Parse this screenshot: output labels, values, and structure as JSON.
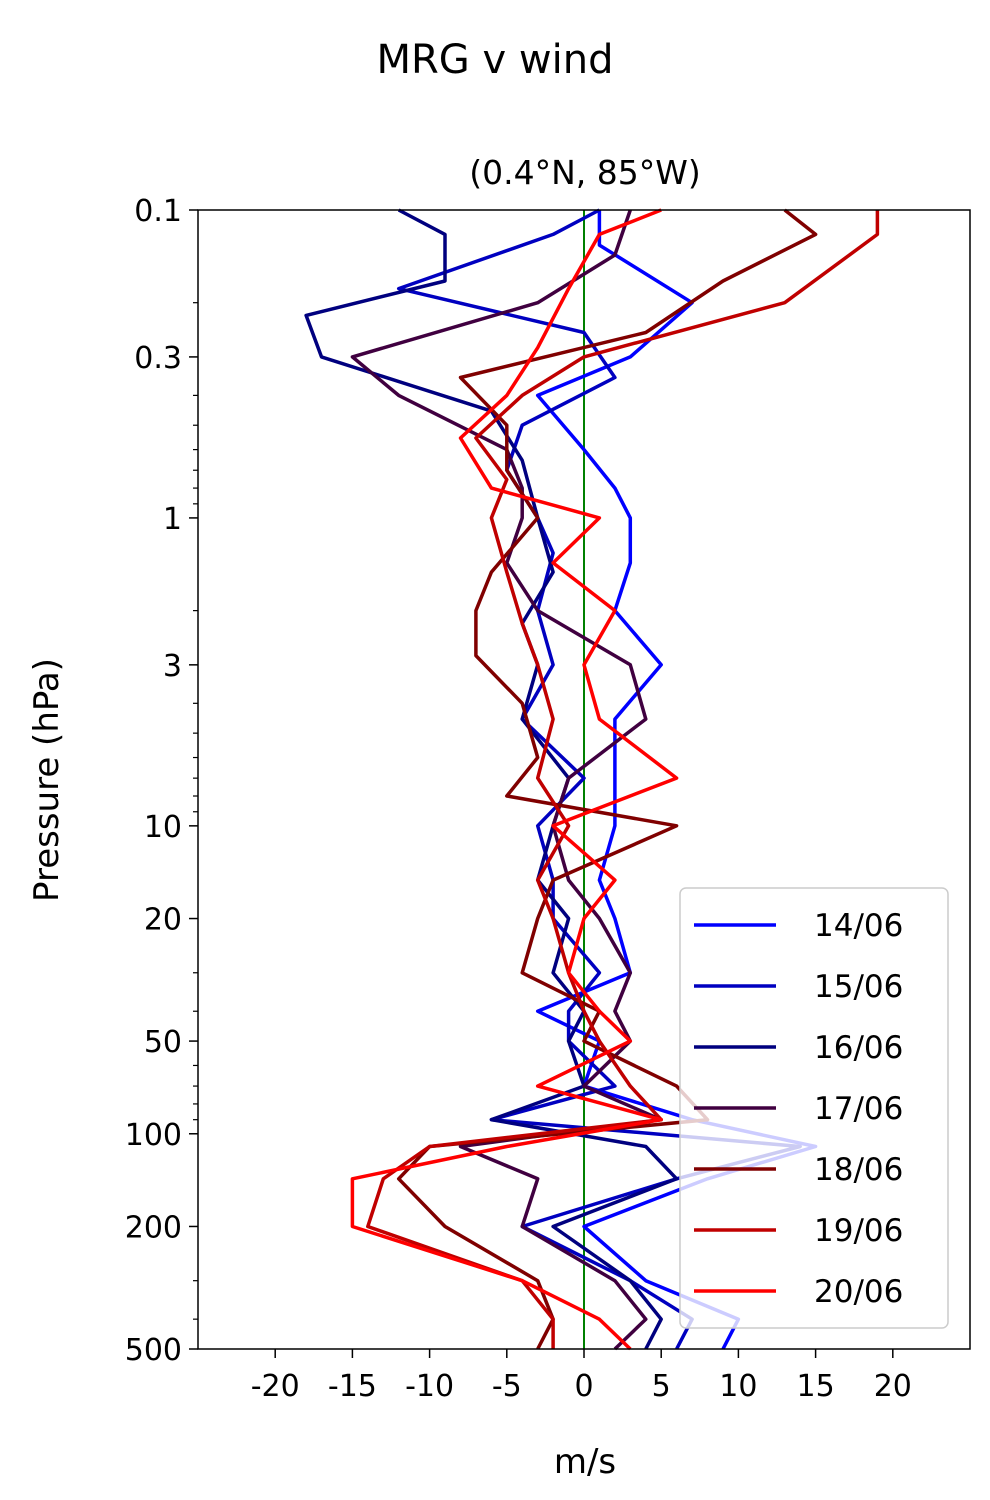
{
  "chart_data": {
    "type": "line",
    "title": "MRG v wind",
    "subtitle": "(0.4°N, 85°W)",
    "xlabel": "m/s",
    "ylabel": "Pressure (hPa)",
    "xlim": [
      -25,
      25
    ],
    "ylim": [
      500,
      0.1
    ],
    "yscale": "log",
    "xticks": [
      -20,
      -15,
      -10,
      -5,
      0,
      5,
      10,
      15,
      20
    ],
    "xtick_labels": [
      "-20",
      "-15",
      "-10",
      "-5",
      "0",
      "5",
      "10",
      "15",
      "20"
    ],
    "yticks": [
      0.1,
      0.3,
      1,
      3,
      10,
      20,
      50,
      100,
      200,
      500
    ],
    "ytick_labels": [
      "0.1",
      "0.3",
      "1",
      "3",
      "10",
      "20",
      "50",
      "100",
      "200",
      "500"
    ],
    "zero_line_color": "#008000",
    "legend_position": "lower-right",
    "series": [
      {
        "name": "14/06",
        "color": "#0000ff",
        "p": [
          0.1,
          0.13,
          0.2,
          0.3,
          0.4,
          0.6,
          0.8,
          1.0,
          1.4,
          2.0,
          3.0,
          4.5,
          7.0,
          10,
          15,
          20,
          30,
          40,
          50,
          70,
          90,
          110,
          140,
          200,
          300,
          400,
          500
        ],
        "v": [
          1,
          1,
          7,
          3,
          -3,
          0,
          2,
          3,
          3,
          2,
          5,
          2,
          2,
          2,
          1,
          2,
          3,
          -3,
          1,
          0,
          7,
          15,
          8,
          0,
          4,
          10,
          9
        ]
      },
      {
        "name": "15/06",
        "color": "#0000c0",
        "p": [
          0.1,
          0.12,
          0.18,
          0.25,
          0.35,
          0.5,
          0.7,
          1.0,
          1.3,
          2.0,
          3.0,
          4.5,
          7.0,
          10,
          15,
          20,
          30,
          40,
          50,
          70,
          90,
          110,
          140,
          200,
          300,
          400,
          500
        ],
        "v": [
          1,
          -2,
          -12,
          0,
          2,
          -4,
          -5,
          -3,
          -2,
          -3,
          -2,
          -4,
          0,
          -3,
          -2,
          -2,
          1,
          -1,
          -1,
          2,
          -6,
          14,
          6,
          -4,
          3,
          7,
          6
        ]
      },
      {
        "name": "16/06",
        "color": "#00007f",
        "p": [
          0.1,
          0.12,
          0.17,
          0.22,
          0.3,
          0.45,
          0.65,
          1.0,
          1.5,
          2.2,
          3.0,
          4.5,
          7.0,
          10,
          15,
          20,
          30,
          40,
          50,
          70,
          90,
          110,
          140,
          200,
          300,
          400,
          500
        ],
        "v": [
          -12,
          -9,
          -9,
          -18,
          -17,
          -6,
          -4,
          -3,
          -2,
          -4,
          -3,
          -4,
          -1,
          -2,
          -3,
          -1,
          -2,
          0,
          -1,
          0,
          -6,
          4,
          6,
          -2,
          3,
          5,
          4
        ]
      },
      {
        "name": "17/06",
        "color": "#400040",
        "p": [
          0.1,
          0.14,
          0.2,
          0.3,
          0.4,
          0.6,
          0.8,
          1.0,
          1.4,
          2.0,
          3.0,
          4.5,
          7.0,
          10,
          15,
          20,
          30,
          40,
          50,
          70,
          90,
          110,
          140,
          200,
          300,
          400,
          500
        ],
        "v": [
          3,
          2,
          -3,
          -15,
          -12,
          -5,
          -4,
          -4,
          -5,
          -3,
          3,
          4,
          -1,
          -2,
          -1,
          1,
          3,
          2,
          3,
          0,
          5,
          -8,
          -3,
          -4,
          2,
          4,
          2
        ]
      },
      {
        "name": "18/06",
        "color": "#800000",
        "p": [
          0.1,
          0.12,
          0.17,
          0.25,
          0.35,
          0.5,
          0.7,
          1.0,
          1.5,
          2.0,
          2.8,
          4.0,
          6.0,
          8.0,
          10,
          15,
          20,
          30,
          40,
          50,
          70,
          90,
          110,
          140,
          200,
          300,
          400,
          500
        ],
        "v": [
          13,
          15,
          9,
          4,
          -8,
          -5,
          -5,
          -3,
          -6,
          -7,
          -7,
          -4,
          -3,
          -5,
          6,
          -2,
          -3,
          -4,
          1,
          0,
          6,
          8,
          -10,
          -12,
          -9,
          -3,
          -2,
          -3
        ]
      },
      {
        "name": "19/06",
        "color": "#c00000",
        "p": [
          0.1,
          0.12,
          0.2,
          0.3,
          0.4,
          0.55,
          0.75,
          1.0,
          1.5,
          2.2,
          3.0,
          4.5,
          7.0,
          10,
          15,
          20,
          30,
          40,
          50,
          70,
          90,
          110,
          140,
          200,
          300,
          400,
          500
        ],
        "v": [
          19,
          19,
          13,
          0,
          -4,
          -7,
          -5,
          -6,
          -5,
          -4,
          -3,
          -2,
          -3,
          -1,
          -3,
          -2,
          -1,
          0,
          1,
          3,
          5,
          -10,
          -13,
          -14,
          -4,
          -2,
          -2
        ]
      },
      {
        "name": "20/06",
        "color": "#ff0000",
        "p": [
          0.1,
          0.12,
          0.18,
          0.28,
          0.4,
          0.55,
          0.8,
          1.0,
          1.4,
          2.0,
          3.0,
          4.5,
          7.0,
          10,
          15,
          20,
          30,
          40,
          50,
          70,
          90,
          110,
          140,
          200,
          300,
          400,
          500
        ],
        "v": [
          5,
          1,
          -1,
          -3,
          -5,
          -8,
          -6,
          1,
          -2,
          2,
          0,
          1,
          6,
          -2,
          2,
          0,
          -1,
          1,
          3,
          -3,
          5,
          -5,
          -15,
          -15,
          -4,
          1,
          3
        ]
      }
    ]
  }
}
